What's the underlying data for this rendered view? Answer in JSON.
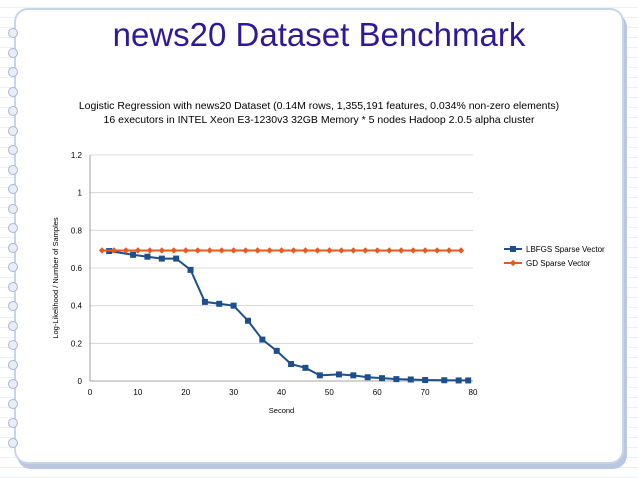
{
  "slide": {
    "title": "news20 Dataset Benchmark"
  },
  "chart_data": {
    "type": "line",
    "title": "Logistic Regression with news20 Dataset (0.14M rows, 1,355,191 features, 0.034% non-zero elements)",
    "subtitle": "16 executors in INTEL Xeon E3-1230v3 32GB Memory * 5 nodes Hadoop 2.0.5 alpha cluster",
    "xlabel": "Second",
    "ylabel": "Log-Likelihood / Number of Samples",
    "xlim": [
      0,
      80
    ],
    "ylim": [
      0,
      1.2
    ],
    "xticks": [
      "0",
      "10",
      "20",
      "30",
      "40",
      "50",
      "60",
      "70",
      "80"
    ],
    "yticks": [
      "0",
      "0.2",
      "0.4",
      "0.6",
      "0.8",
      "1",
      "1.2"
    ],
    "legend_position": "right",
    "grid": true,
    "series": [
      {
        "name": "LBFGS Sparse Vector",
        "color": "#1f4e8c",
        "marker": "square",
        "points": [
          [
            4,
            0.69
          ],
          [
            9,
            0.67
          ],
          [
            12,
            0.66
          ],
          [
            15,
            0.65
          ],
          [
            18,
            0.65
          ],
          [
            21,
            0.59
          ],
          [
            24,
            0.42
          ],
          [
            27,
            0.41
          ],
          [
            30,
            0.4
          ],
          [
            33,
            0.32
          ],
          [
            36,
            0.22
          ],
          [
            39,
            0.16
          ],
          [
            42,
            0.09
          ],
          [
            45,
            0.07
          ],
          [
            48,
            0.03
          ],
          [
            52,
            0.035
          ],
          [
            55,
            0.03
          ],
          [
            58,
            0.02
          ],
          [
            61,
            0.015
          ],
          [
            64,
            0.01
          ],
          [
            67,
            0.008
          ],
          [
            70,
            0.005
          ],
          [
            74,
            0.004
          ],
          [
            77,
            0.003
          ],
          [
            79,
            0.003
          ]
        ]
      },
      {
        "name": "GD Sparse Vector",
        "color": "#e8591c",
        "marker": "diamond",
        "points": [
          [
            2.5,
            0.693
          ],
          [
            5,
            0.693
          ],
          [
            7.5,
            0.693
          ],
          [
            10,
            0.693
          ],
          [
            12.5,
            0.693
          ],
          [
            15,
            0.693
          ],
          [
            17.5,
            0.693
          ],
          [
            20,
            0.693
          ],
          [
            22.5,
            0.693
          ],
          [
            25,
            0.693
          ],
          [
            27.5,
            0.693
          ],
          [
            30,
            0.693
          ],
          [
            32.5,
            0.693
          ],
          [
            35,
            0.693
          ],
          [
            37.5,
            0.693
          ],
          [
            40,
            0.693
          ],
          [
            42.5,
            0.693
          ],
          [
            45,
            0.693
          ],
          [
            47.5,
            0.693
          ],
          [
            50,
            0.693
          ],
          [
            52.5,
            0.693
          ],
          [
            55,
            0.693
          ],
          [
            57.5,
            0.693
          ],
          [
            60,
            0.693
          ],
          [
            62.5,
            0.693
          ],
          [
            65,
            0.693
          ],
          [
            67.5,
            0.693
          ],
          [
            70,
            0.693
          ],
          [
            72.5,
            0.693
          ],
          [
            75,
            0.693
          ],
          [
            77.5,
            0.693
          ]
        ]
      }
    ]
  }
}
